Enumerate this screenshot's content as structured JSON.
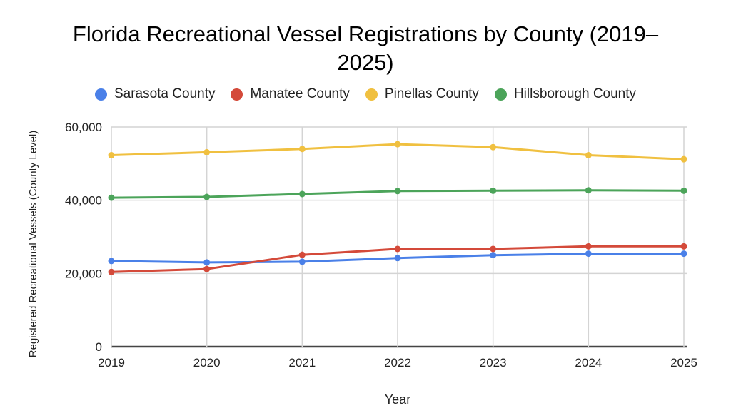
{
  "chart_data": {
    "type": "line",
    "title_line1": "Florida Recreational Vessel Registrations by County (2019–",
    "title_line2": "2025)",
    "xlabel": "Year",
    "ylabel": "Registered Recreational Vessels (County Level)",
    "ylim": [
      0,
      60000
    ],
    "yticks": [
      0,
      20000,
      40000,
      60000
    ],
    "ytick_labels": [
      "0",
      "20,000",
      "40,000",
      "60,000"
    ],
    "categories": [
      "2019",
      "2020",
      "2021",
      "2022",
      "2023",
      "2024",
      "2025"
    ],
    "grid": true,
    "legend_position": "top",
    "series": [
      {
        "name": "Sarasota County",
        "color": "#4a80e8",
        "values": [
          23400,
          23000,
          23200,
          24200,
          25000,
          25400,
          25400
        ]
      },
      {
        "name": "Manatee County",
        "color": "#d44a3a",
        "values": [
          20400,
          21200,
          25100,
          26700,
          26700,
          27400,
          27400
        ]
      },
      {
        "name": "Pinellas County",
        "color": "#f0c040",
        "values": [
          52300,
          53100,
          54000,
          55300,
          54500,
          52300,
          51200
        ]
      },
      {
        "name": "Hillsborough County",
        "color": "#4ca45a",
        "values": [
          40700,
          40900,
          41700,
          42500,
          42600,
          42700,
          42600
        ]
      }
    ]
  }
}
